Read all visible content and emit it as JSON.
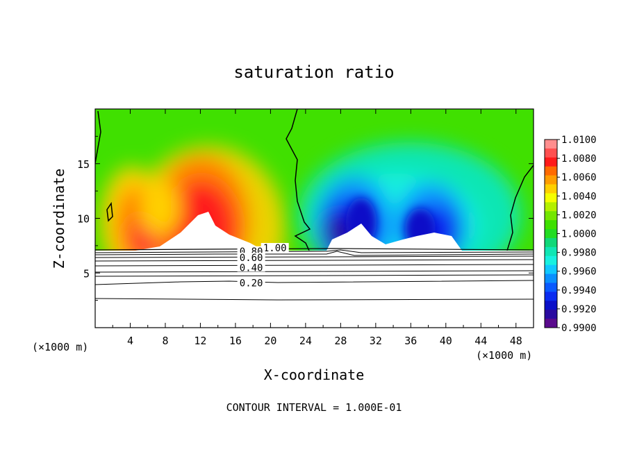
{
  "chart_data": {
    "type": "heatmap",
    "title": "saturation ratio",
    "xlabel": "X-coordinate",
    "ylabel": "Z-coordinate",
    "x_unit_label": "(×1000 m)",
    "y_unit_label": "(×1000 m)",
    "x_range": [
      0,
      50
    ],
    "y_range": [
      0,
      20
    ],
    "x_ticks": [
      4,
      8,
      12,
      16,
      20,
      24,
      28,
      32,
      36,
      40,
      44,
      48
    ],
    "y_ticks": [
      5,
      10,
      15
    ],
    "footer": "CONTOUR INTERVAL = 1.000E-01",
    "colorbar": {
      "levels": [
        "1.0100",
        "1.0080",
        "1.0060",
        "1.0040",
        "1.0020",
        "1.0000",
        "0.9980",
        "0.9960",
        "0.9940",
        "0.9920",
        "0.9900"
      ],
      "colors": [
        "#ff8e8e",
        "#ff5050",
        "#ff1a1a",
        "#ff6a00",
        "#ff9d00",
        "#ffd000",
        "#f5ff00",
        "#b4f000",
        "#74e600",
        "#3ee000",
        "#22dc22",
        "#10d878",
        "#10e6b4",
        "#18f0e0",
        "#10c8ff",
        "#0a90ff",
        "#0a5aff",
        "#0a2cf0",
        "#0a10c8",
        "#2a0aa0",
        "#5a0a8c"
      ]
    },
    "contour_labels": [
      {
        "value": "1.00",
        "x": 20.5,
        "y": 7.3
      },
      {
        "value": "0.80",
        "x": 17.8,
        "y": 7.0
      },
      {
        "value": "0.60",
        "x": 17.8,
        "y": 6.4
      },
      {
        "value": "0.40",
        "x": 17.8,
        "y": 5.5
      },
      {
        "value": "0.20",
        "x": 17.8,
        "y": 4.1
      }
    ]
  }
}
